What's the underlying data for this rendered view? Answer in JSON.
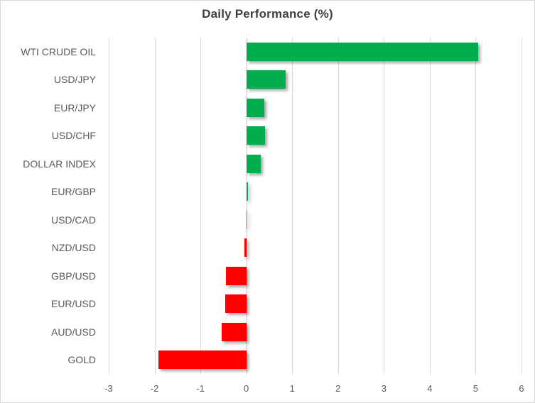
{
  "chart_data": {
    "type": "bar",
    "orientation": "horizontal",
    "title": "Daily Performance (%)",
    "categories": [
      "WTI CRUDE OIL",
      "USD/JPY",
      "EUR/JPY",
      "USD/CHF",
      "DOLLAR INDEX",
      "EUR/GBP",
      "USD/CAD",
      "NZD/USD",
      "GBP/USD",
      "EUR/USD",
      "AUD/USD",
      "GOLD"
    ],
    "values": [
      5.05,
      0.86,
      0.39,
      0.41,
      0.31,
      0.03,
      0.0,
      -0.04,
      -0.45,
      -0.46,
      -0.53,
      -1.92
    ],
    "xlabel": "",
    "ylabel": "",
    "xlim": [
      -3,
      6
    ],
    "xticks": [
      -3,
      -2,
      -1,
      0,
      1,
      2,
      3,
      4,
      5,
      6
    ],
    "xtick_labels": [
      "-3",
      "-2",
      "-1",
      "0",
      "1",
      "2",
      "3",
      "4",
      "5",
      "6"
    ],
    "grid": true,
    "legend_position": "none",
    "colors": {
      "positive": "#00ae50",
      "negative": "#ff0000",
      "gridline": "#d9d9d9",
      "axis_text": "#595959",
      "title_text": "#3f3f3f"
    }
  }
}
